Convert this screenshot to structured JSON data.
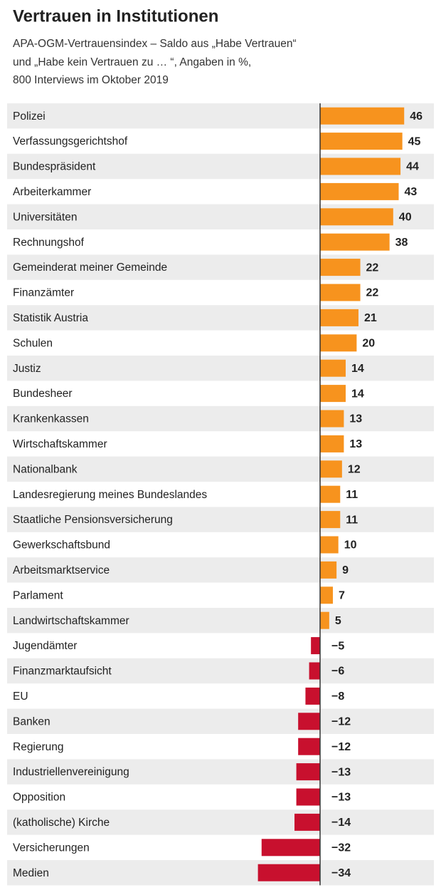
{
  "chart_data": {
    "type": "hbar",
    "title": "Vertrauen in Institutionen",
    "subtitle": [
      "APA-OGM-Vertrauensindex – Saldo aus „Habe Vertrauen“",
      "und „Habe kein Vertrauen zu … “, Angaben in %,",
      "800 Interviews im Oktober 2019"
    ],
    "categories": [
      "Polizei",
      "Verfassungsgerichtshof",
      "Bundespräsident",
      "Arbeiterkammer",
      "Universitäten",
      "Rechnungshof",
      "Gemeinderat meiner Gemeinde",
      "Finanzämter",
      "Statistik Austria",
      "Schulen",
      "Justiz",
      "Bundesheer",
      "Krankenkassen",
      "Wirtschaftskammer",
      "Nationalbank",
      "Landesregierung meines Bundeslandes",
      "Staatliche Pensionsversicherung",
      "Gewerkschaftsbund",
      "Arbeitsmarktservice",
      "Parlament",
      "Landwirtschaftskammer",
      "Jugendämter",
      "Finanzmarktaufsicht",
      "EU",
      "Banken",
      "Regierung",
      "Industriellenvereinigung",
      "Opposition",
      "(katholische) Kirche",
      "Versicherungen",
      "Medien"
    ],
    "values": [
      46,
      45,
      44,
      43,
      40,
      38,
      22,
      22,
      21,
      20,
      14,
      14,
      13,
      13,
      12,
      11,
      11,
      10,
      9,
      7,
      5,
      -5,
      -6,
      -8,
      -12,
      -12,
      -13,
      -13,
      -14,
      -32,
      -34
    ],
    "value_labels": [
      "46",
      "45",
      "44",
      "43",
      "40",
      "38",
      "22",
      "22",
      "21",
      "20",
      "14",
      "14",
      "13",
      "13",
      "12",
      "11",
      "11",
      "10",
      "9",
      "7",
      "5",
      "−5",
      "−6",
      "−8",
      "−12",
      "−12",
      "−13",
      "−13",
      "−14",
      "−32",
      "−34"
    ],
    "color": "#f7931e",
    "negative_color": "#c8102e"
  }
}
